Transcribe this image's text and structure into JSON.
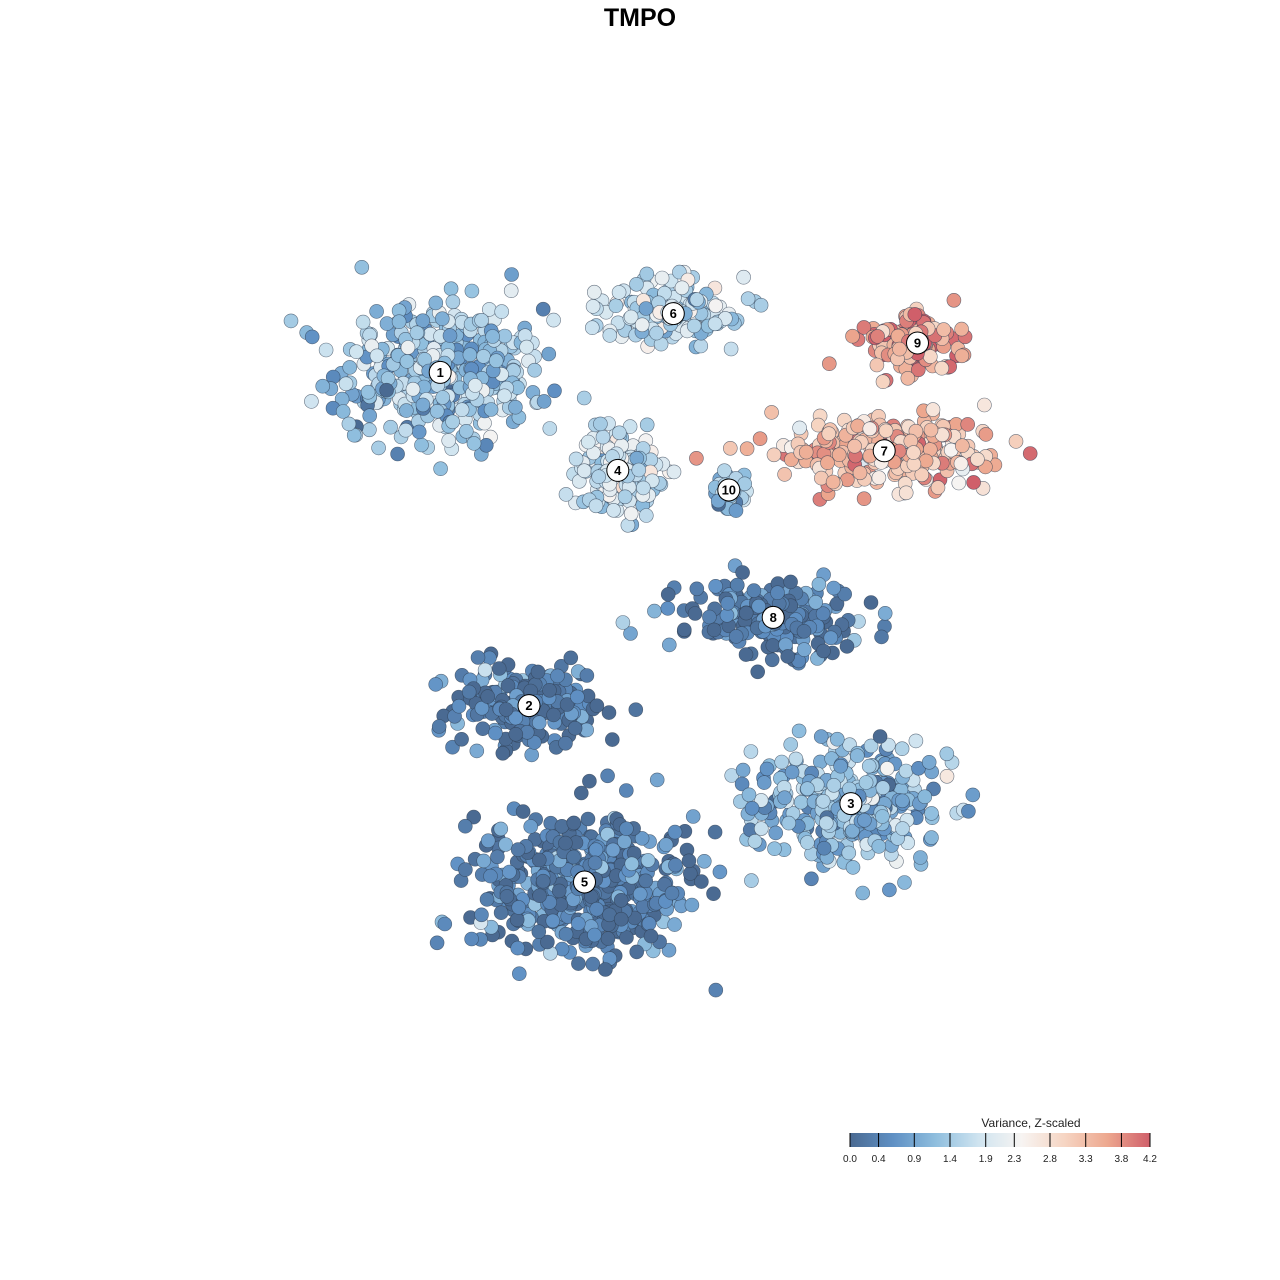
{
  "chart_data": {
    "type": "scatter",
    "title": "TMPO",
    "xlabel": "",
    "ylabel": "",
    "grid": false,
    "axes_visible": false,
    "color_scale": {
      "title": "Variance, Z-scaled",
      "min": 0.0,
      "max": 4.2,
      "ticks": [
        "0.0",
        "0.4",
        "0.9",
        "1.4",
        "1.9",
        "2.3",
        "2.8",
        "3.3",
        "3.8",
        "4.2"
      ],
      "tick_values": [
        0.0,
        0.4,
        0.9,
        1.4,
        1.9,
        2.3,
        2.8,
        3.3,
        3.8,
        4.2
      ],
      "colors": [
        "#4a6a92",
        "#5f90c4",
        "#8fbede",
        "#cfe4f0",
        "#f7f4f2",
        "#f6d5c3",
        "#eda88f",
        "#d05f6a"
      ],
      "placement": "bottom-right"
    },
    "clusters": [
      {
        "label": "1",
        "x": -18.0,
        "y": 22.0,
        "mean_value": 1.3
      },
      {
        "label": "2",
        "x": -10.0,
        "y": -12.0,
        "mean_value": 0.2
      },
      {
        "label": "3",
        "x": 19.0,
        "y": -22.0,
        "mean_value": 1.2
      },
      {
        "label": "4",
        "x": -2.0,
        "y": 12.0,
        "mean_value": 1.8
      },
      {
        "label": "5",
        "x": -5.0,
        "y": -30.0,
        "mean_value": 0.3
      },
      {
        "label": "6",
        "x": 3.0,
        "y": 28.0,
        "mean_value": 1.7
      },
      {
        "label": "7",
        "x": 22.0,
        "y": 14.0,
        "mean_value": 3.2
      },
      {
        "label": "8",
        "x": 12.0,
        "y": -3.0,
        "mean_value": 0.3
      },
      {
        "label": "9",
        "x": 25.0,
        "y": 25.0,
        "mean_value": 3.6
      },
      {
        "label": "10",
        "x": 8.0,
        "y": 10.0,
        "mean_value": 1.2
      }
    ]
  }
}
